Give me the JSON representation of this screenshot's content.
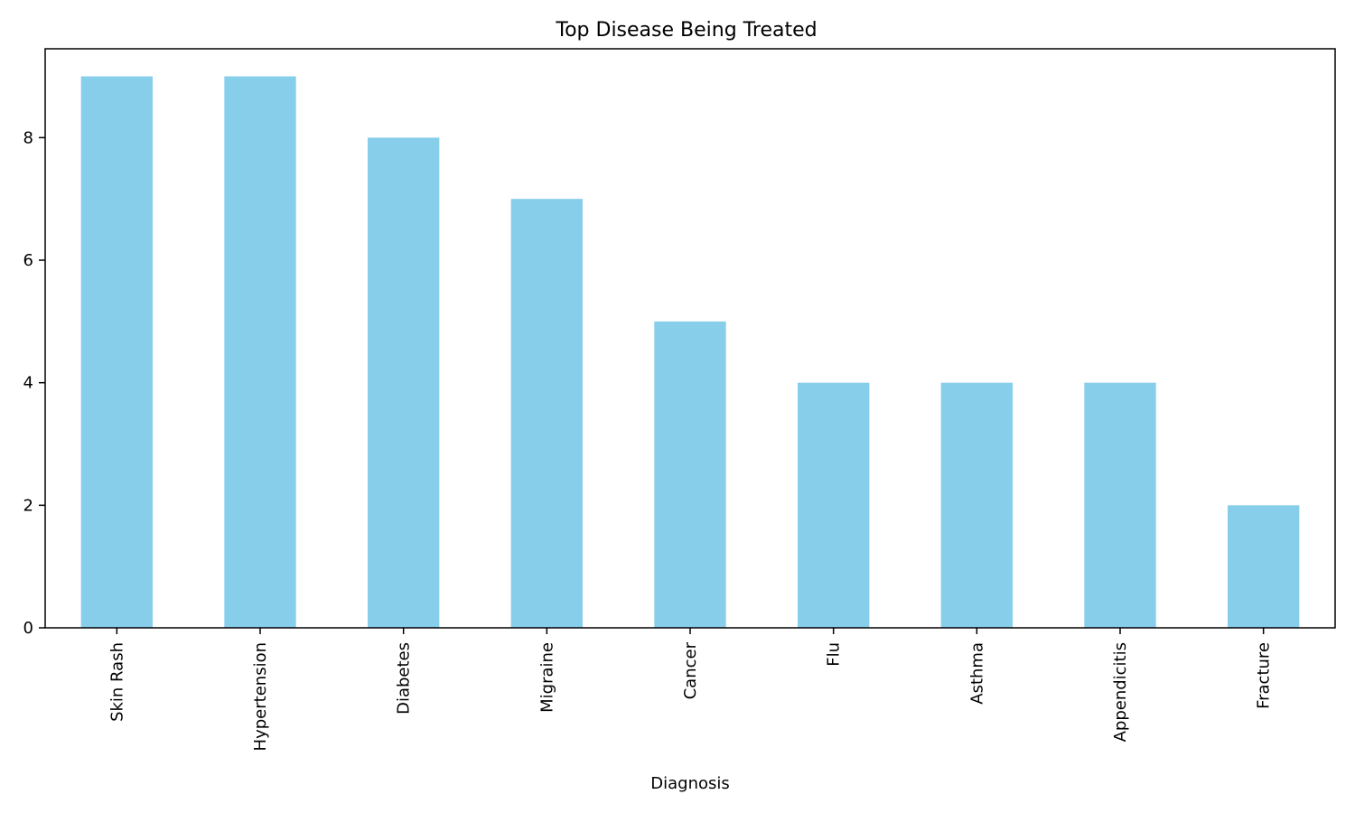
{
  "chart_data": {
    "type": "bar",
    "title": "Top Disease Being Treated",
    "xlabel": "Diagnosis",
    "ylabel": "",
    "categories": [
      "Skin Rash",
      "Hypertension",
      "Diabetes",
      "Migraine",
      "Cancer",
      "Flu",
      "Asthma",
      "Appendicitis",
      "Fracture"
    ],
    "values": [
      9,
      9,
      8,
      7,
      5,
      4,
      4,
      4,
      2
    ],
    "ylim": [
      0,
      9.45
    ],
    "yticks": [
      0,
      2,
      4,
      6,
      8
    ],
    "bar_color": "#87CEEB",
    "grid": false,
    "legend": "none"
  }
}
